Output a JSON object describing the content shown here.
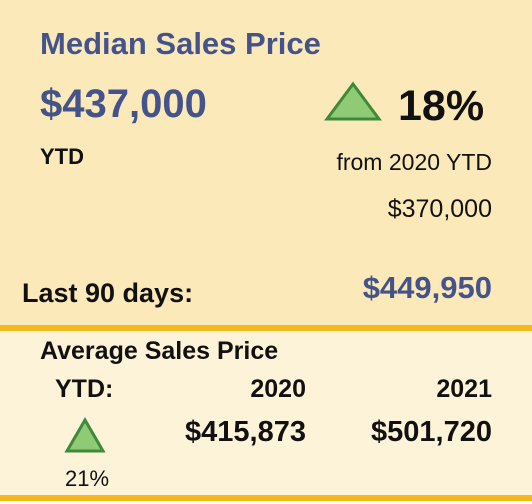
{
  "median": {
    "title": "Median Sales Price",
    "value": "$437,000",
    "change": "18%",
    "period_label": "YTD",
    "comparison_label": "from 2020 YTD",
    "comparison_value": "$370,000",
    "recent_label": "Last 90 days:",
    "recent_value": "$449,950"
  },
  "average": {
    "title": "Average Sales Price",
    "period_label": "YTD:",
    "columns": [
      "2020",
      "2021"
    ],
    "values": [
      "$415,873",
      "$501,720"
    ],
    "change": "21%"
  }
}
